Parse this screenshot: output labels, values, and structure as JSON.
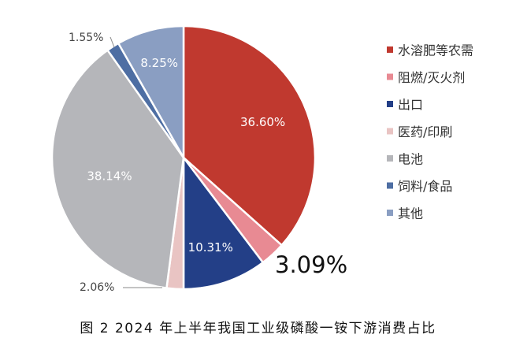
{
  "caption": "图 2 2024 年上半年我国工业级磷酸一铵下游消费占比",
  "colors": {
    "水溶肥等农需": "#c0392f",
    "阻燃/灭火剂": "#e88a93",
    "出口": "#233f87",
    "医药/印刷": "#e9c4c3",
    "电池": "#b5b6ba",
    "饲料/食品": "#4e6ea3",
    "其他": "#8a9ec2"
  },
  "chart_data": {
    "type": "pie",
    "title": "",
    "legend_position": "right",
    "slices": [
      {
        "label": "水溶肥等农需",
        "value": 36.6,
        "display": "36.60%"
      },
      {
        "label": "阻燃/灭火剂",
        "value": 3.09,
        "display": "3.09%"
      },
      {
        "label": "出口",
        "value": 10.31,
        "display": "10.31%"
      },
      {
        "label": "医药/印刷",
        "value": 2.06,
        "display": "2.06%"
      },
      {
        "label": "电池",
        "value": 38.14,
        "display": "38.14%"
      },
      {
        "label": "饲料/食品",
        "value": 1.55,
        "display": "1.55%"
      },
      {
        "label": "其他",
        "value": 8.25,
        "display": "8.25%"
      }
    ]
  }
}
